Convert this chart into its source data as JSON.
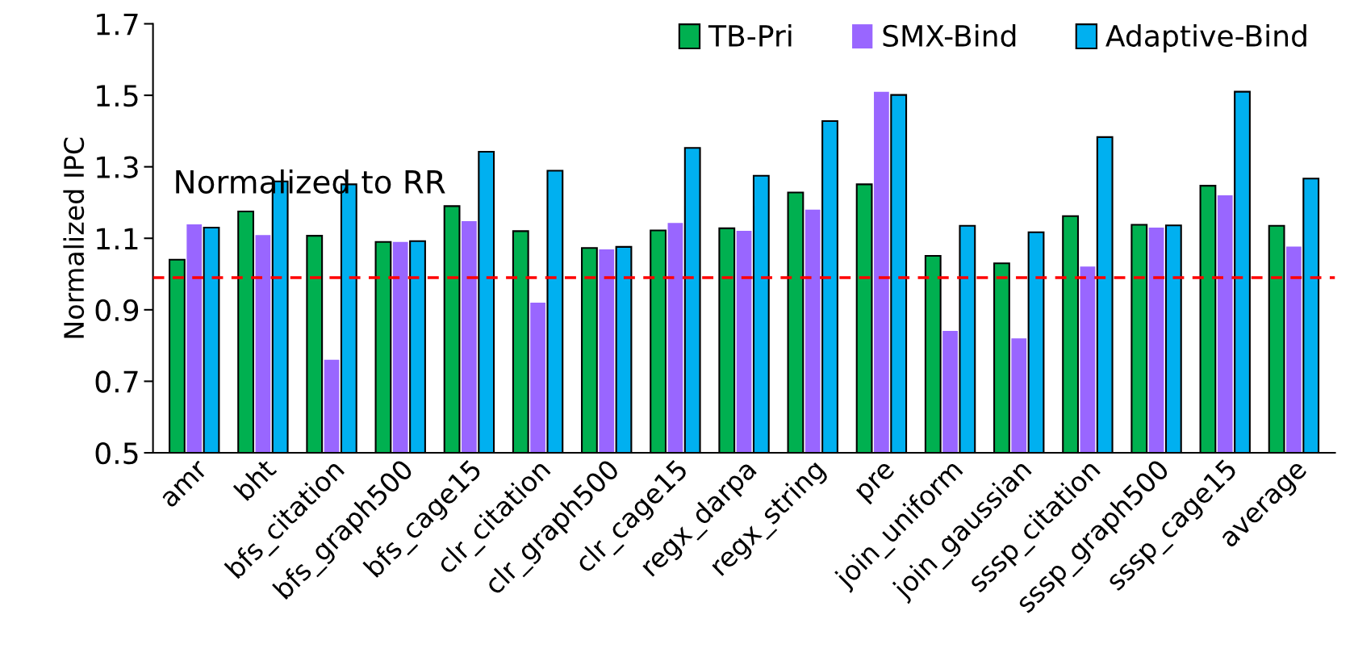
{
  "chart_data": {
    "type": "bar",
    "ylabel": "Normalized IPC",
    "categories": [
      "amr",
      "bht",
      "bfs_citation",
      "bfs_graph500",
      "bfs_cage15",
      "clr_citation",
      "clr_graph500",
      "clr_cage15",
      "regx_darpa",
      "regx_string",
      "pre",
      "join_uniform",
      "join_gaussian",
      "sssp_citation",
      "sssp_graph500",
      "sssp_cage15",
      "average"
    ],
    "series": [
      {
        "name": "TB-Pri",
        "color": "#00b050",
        "values": [
          1.04,
          1.175,
          1.107,
          1.09,
          1.19,
          1.12,
          1.073,
          1.122,
          1.128,
          1.228,
          1.251,
          1.051,
          1.03,
          1.162,
          1.138,
          1.247,
          1.135
        ]
      },
      {
        "name": "SMX-Bind",
        "color": "#9966ff",
        "values": [
          1.139,
          1.109,
          0.76,
          1.09,
          1.148,
          0.92,
          1.069,
          1.143,
          1.121,
          1.18,
          1.51,
          0.841,
          0.82,
          1.021,
          1.13,
          1.22,
          1.077
        ]
      },
      {
        "name": "Adaptive-Bind",
        "color": "#00b0f0",
        "values": [
          1.13,
          1.259,
          1.251,
          1.092,
          1.342,
          1.289,
          1.076,
          1.353,
          1.275,
          1.428,
          1.501,
          1.135,
          1.117,
          1.383,
          1.136,
          1.51,
          1.267
        ]
      }
    ],
    "ylim": [
      0.5,
      1.7
    ],
    "yticks": [
      0.5,
      0.7,
      0.9,
      1.1,
      1.3,
      1.5,
      1.7
    ],
    "ref_lines": [
      {
        "axis": "y",
        "value": 0.99,
        "color": "#ff0000",
        "line_style": "dashed"
      }
    ],
    "annotations": [
      "Normalized to RR"
    ],
    "legend": "top right",
    "grid": false
  }
}
